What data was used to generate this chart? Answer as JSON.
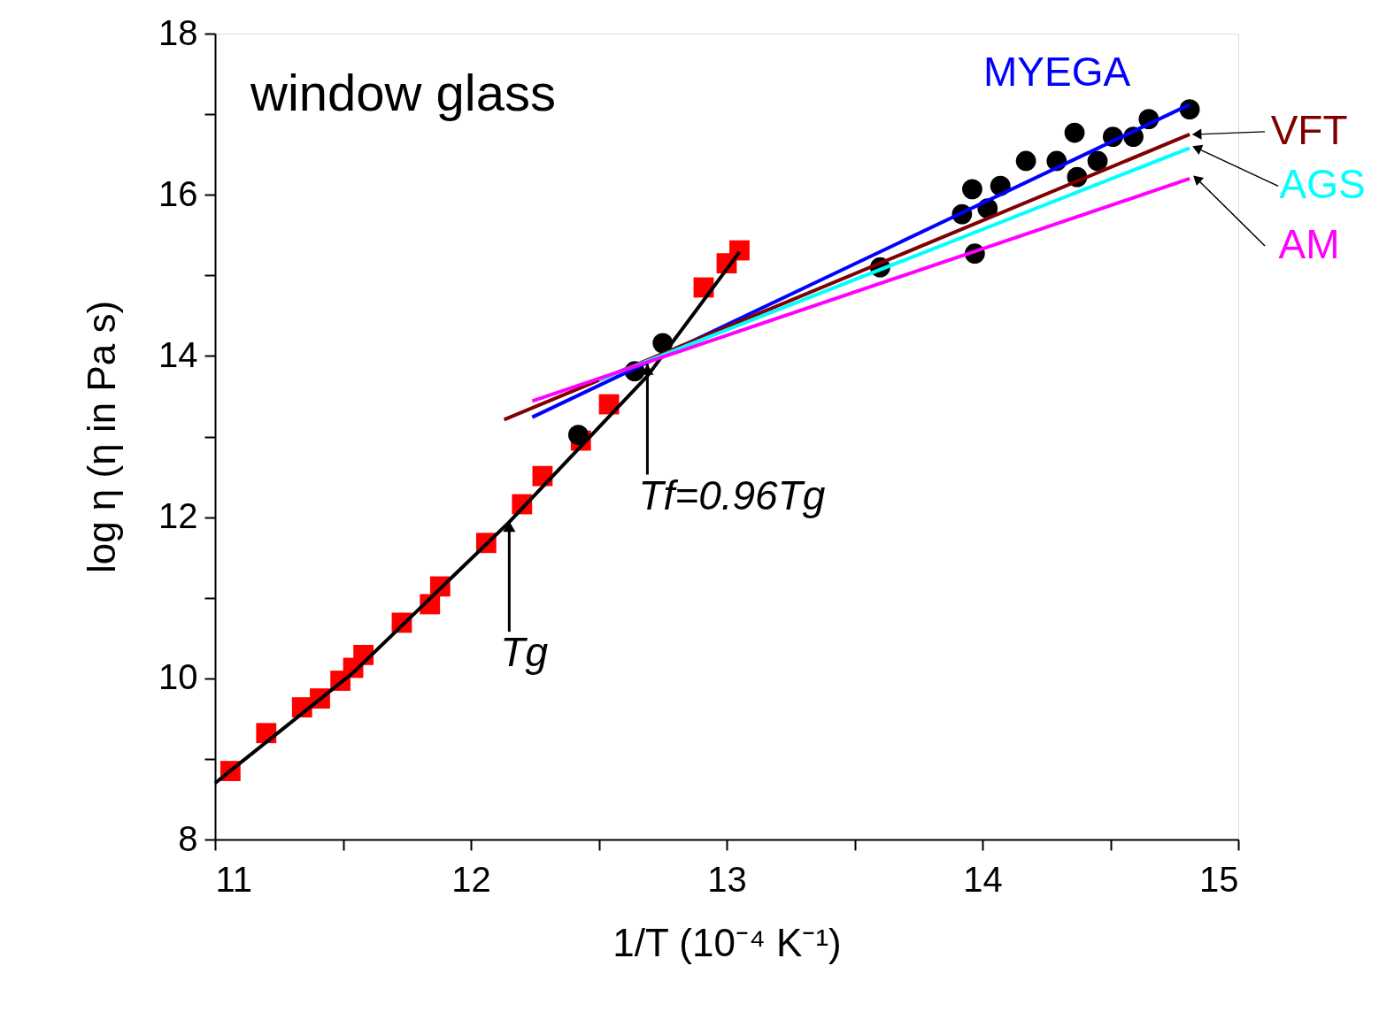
{
  "chart_data": {
    "type": "scatter",
    "xlabel": "1/T (10⁻⁴ K⁻¹)",
    "ylabel": "log η (η in Pa s)",
    "xlim": [
      11,
      15
    ],
    "ylim": [
      8,
      18
    ],
    "xticks": [
      11,
      {
        "value": 11.5,
        "label": null
      },
      12,
      {
        "value": 12.5,
        "label": null
      },
      13,
      {
        "value": 13.5,
        "label": null
      },
      14,
      {
        "value": 14.5,
        "label": null
      },
      15
    ],
    "yticks": [
      8,
      {
        "value": 9,
        "label": null
      },
      10,
      {
        "value": 11,
        "label": null
      },
      12,
      {
        "value": 13,
        "label": null
      },
      14,
      {
        "value": 15,
        "label": null
      },
      16,
      {
        "value": 17,
        "label": null
      },
      18
    ],
    "grid": false,
    "series": [
      {
        "marker": "square",
        "color": "#ff0000",
        "x": [
          11.06,
          11.2,
          11.34,
          11.41,
          11.49,
          11.54,
          11.58,
          11.73,
          11.84,
          11.88,
          12.06,
          12.2,
          12.28,
          12.43,
          12.54,
          12.91,
          13.0,
          13.05
        ],
        "values": [
          8.85,
          9.32,
          9.64,
          9.75,
          9.97,
          10.13,
          10.29,
          10.69,
          10.92,
          11.14,
          11.68,
          12.16,
          12.51,
          12.95,
          13.4,
          14.85,
          15.15,
          15.31
        ]
      },
      {
        "marker": "circle",
        "color": "#000000",
        "x": [
          12.42,
          12.64,
          12.75,
          13.6,
          13.92,
          13.96,
          13.97,
          14.02,
          14.07,
          14.17,
          14.29,
          14.36,
          14.37,
          14.45,
          14.51,
          14.59,
          14.65,
          14.81
        ],
        "values": [
          13.02,
          13.81,
          14.16,
          15.1,
          15.76,
          16.07,
          15.27,
          15.83,
          16.11,
          16.42,
          16.42,
          16.77,
          16.22,
          16.42,
          16.72,
          16.72,
          16.94,
          17.06
        ]
      },
      {
        "type": "line",
        "color": "#000000",
        "x": [
          11.0,
          11.54,
          12.15,
          12.69,
          13.05
        ],
        "values": [
          8.7,
          10.07,
          11.94,
          13.75,
          15.29
        ]
      },
      {
        "type": "line",
        "name": "MYEGA",
        "color": "#0000ff",
        "x": [
          12.24,
          14.81
        ],
        "values": [
          13.24,
          17.12
        ]
      },
      {
        "type": "line",
        "name": "VFT",
        "color": "#800000",
        "x": [
          12.13,
          14.81
        ],
        "values": [
          13.21,
          16.75
        ]
      },
      {
        "type": "line",
        "name": "AGS",
        "color": "#00ffff",
        "x": [
          12.5,
          14.81
        ],
        "values": [
          13.7,
          16.58
        ]
      },
      {
        "type": "line",
        "name": "AM",
        "color": "#ff00ff",
        "x": [
          12.24,
          14.81
        ],
        "values": [
          13.44,
          16.2
        ]
      }
    ],
    "annotations": [
      "window glass",
      {
        "text": "Tg",
        "x": 12.15,
        "y": 11.95
      },
      {
        "text": "Tf=0.96Tg",
        "x": 12.69,
        "y": 13.9
      }
    ]
  }
}
